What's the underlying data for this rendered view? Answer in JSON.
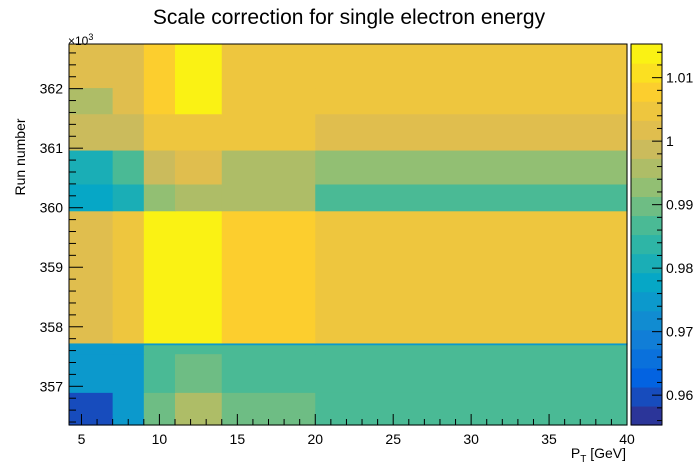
{
  "chart_data": {
    "type": "heatmap",
    "title": "Scale correction for single electron energy",
    "xlabel_main": "P",
    "xlabel_sub": "T",
    "xlabel_unit": " [GeV]",
    "ylabel": "Run number",
    "y_multiplier_base": "×10",
    "y_multiplier_exp": "3",
    "xlim": [
      4.2,
      40
    ],
    "ylim": [
      356.35,
      362.75
    ],
    "x_ticks": [
      5,
      10,
      15,
      20,
      25,
      30,
      35,
      40
    ],
    "x_tick_labels": [
      "5",
      "10",
      "15",
      "20",
      "25",
      "30",
      "35",
      "40"
    ],
    "y_ticks": [
      357,
      358,
      359,
      360,
      361,
      362
    ],
    "y_tick_labels": [
      "357",
      "358",
      "359",
      "360",
      "361",
      "362"
    ],
    "x_bin_edges": [
      4.2,
      7,
      9,
      11,
      14,
      20,
      40
    ],
    "y_bin_edges": [
      356.35,
      356.9,
      357.55,
      357.7,
      357.73,
      359.95,
      360.4,
      360.97,
      361.58,
      362.02,
      362.75
    ],
    "z": [
      [
        0.9585,
        0.9735,
        0.9892,
        0.9955,
        0.9892,
        0.9862
      ],
      [
        0.974,
        0.9735,
        0.987,
        0.9892,
        0.9862,
        0.9862
      ],
      [
        0.9762,
        0.9735,
        0.9868,
        0.9868,
        0.9862,
        0.9862
      ],
      [
        0.974,
        0.974,
        0.974,
        0.974,
        0.974,
        0.974
      ],
      [
        1.0022,
        1.0052,
        1.0125,
        1.0125,
        1.009,
        1.0062
      ],
      [
        0.9785,
        0.9802,
        0.994,
        0.9955,
        0.9955,
        0.9872
      ],
      [
        0.981,
        0.9862,
        0.9992,
        1.0022,
        0.9955,
        0.9932
      ],
      [
        1.0,
        1.0,
        1.0062,
        1.0062,
        1.0045,
        1.0022
      ],
      [
        0.9965,
        1.0022,
        1.0092,
        1.0125,
        1.0062,
        1.0062
      ],
      [
        1.0022,
        1.0022,
        1.0092,
        1.0125,
        1.0062,
        1.0062
      ]
    ],
    "colorbar": {
      "zlim": [
        0.9553,
        1.0153
      ],
      "ticks": [
        0.96,
        0.97,
        0.98,
        0.99,
        1.0,
        1.01
      ],
      "tick_labels": [
        "0.96",
        "0.97",
        "0.98",
        "0.99",
        "1",
        "1.01"
      ],
      "n_levels": 20
    },
    "palette": [
      "#352a87",
      "#0363e1",
      "#1485d4",
      "#06a7c6",
      "#38b99e",
      "#92bf73",
      "#d9ba56",
      "#fcce2e",
      "#f9fb0e"
    ],
    "grid": false,
    "legend": "colorbar-right"
  }
}
